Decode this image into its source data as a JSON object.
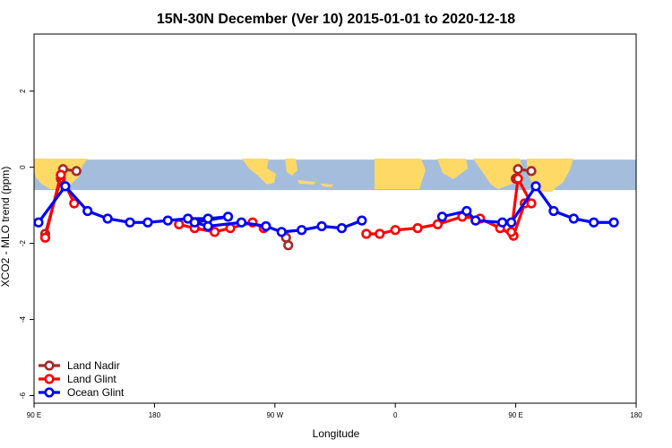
{
  "chart_data": {
    "type": "line",
    "title": "15N-30N December (Ver 10)   2015-01-01 to 2020-12-18",
    "xlabel": "Longitude",
    "ylabel": "XCO2 - MLO trend (ppm)",
    "xlim": [
      -90,
      180
    ],
    "ylim": [
      -6.2,
      3.5
    ],
    "x_ticks": [
      {
        "value": -90,
        "label": "90 E"
      },
      {
        "value": -36,
        "label": "180"
      },
      {
        "value": 18,
        "label": "90 W"
      },
      {
        "value": 72,
        "label": "0"
      },
      {
        "value": 126,
        "label": "90 E"
      },
      {
        "value": 180,
        "label": "180"
      }
    ],
    "y_ticks": [
      {
        "value": 2,
        "label": "2"
      },
      {
        "value": 0,
        "label": "0"
      },
      {
        "value": -2,
        "label": "-2"
      },
      {
        "value": -4,
        "label": "-4"
      },
      {
        "value": -6,
        "label": "-6"
      }
    ],
    "map_band": {
      "y_top": 0.2,
      "y_bottom": -0.6,
      "ocean_color": "#a5bddc",
      "land_color": "#ffd966"
    },
    "legend_position": "bottom-left",
    "series": [
      {
        "name": "Land Nadir",
        "color": "#a52a2a",
        "segments": [
          [
            [
              -85,
              -1.75
            ],
            [
              -78,
              -0.3
            ],
            [
              -77,
              -0.05
            ],
            [
              -71,
              -0.1
            ]
          ],
          [
            [
              23,
              -1.85
            ],
            [
              24,
              -2.05
            ]
          ],
          [
            [
              126,
              -0.3
            ],
            [
              127,
              -0.05
            ],
            [
              133,
              -0.1
            ]
          ]
        ]
      },
      {
        "name": "Land Glint",
        "color": "#ff0000",
        "segments": [
          [
            [
              -85,
              -1.85
            ],
            [
              -78,
              -0.2
            ],
            [
              -72,
              -0.95
            ]
          ],
          [
            [
              -25,
              -1.5
            ],
            [
              -18,
              -1.6
            ],
            [
              -9,
              -1.7
            ],
            [
              -2,
              -1.6
            ],
            [
              8,
              -1.45
            ],
            [
              13,
              -1.6
            ]
          ],
          [
            [
              59,
              -1.75
            ],
            [
              65,
              -1.75
            ],
            [
              72,
              -1.65
            ],
            [
              82,
              -1.6
            ],
            [
              91,
              -1.5
            ],
            [
              102,
              -1.3
            ],
            [
              110,
              -1.35
            ],
            [
              119,
              -1.6
            ],
            [
              125,
              -1.8
            ],
            [
              130,
              -0.95
            ]
          ],
          [
            [
              124,
              -1.7
            ],
            [
              127,
              -0.3
            ],
            [
              133,
              -0.95
            ]
          ]
        ]
      },
      {
        "name": "Ocean Glint",
        "color": "#0000ff",
        "segments": [
          [
            [
              -88,
              -1.45
            ],
            [
              -76,
              -0.5
            ],
            [
              -66,
              -1.15
            ],
            [
              -57,
              -1.35
            ],
            [
              -47,
              -1.45
            ],
            [
              -39,
              -1.45
            ],
            [
              -30,
              -1.4
            ],
            [
              -21,
              -1.35
            ],
            [
              -12,
              -1.35
            ],
            [
              -3,
              -1.3
            ],
            [
              -18,
              -1.45
            ],
            [
              -12,
              -1.55
            ],
            [
              3,
              -1.45
            ],
            [
              14,
              -1.55
            ],
            [
              21,
              -1.7
            ],
            [
              30,
              -1.65
            ],
            [
              39,
              -1.55
            ],
            [
              48,
              -1.6
            ],
            [
              57,
              -1.4
            ]
          ],
          [
            [
              93,
              -1.3
            ],
            [
              104,
              -1.15
            ],
            [
              108,
              -1.4
            ],
            [
              120,
              -1.45
            ],
            [
              124,
              -1.45
            ],
            [
              135,
              -0.5
            ],
            [
              143,
              -1.15
            ],
            [
              152,
              -1.35
            ],
            [
              161,
              -1.45
            ],
            [
              170,
              -1.45
            ]
          ]
        ]
      }
    ]
  }
}
